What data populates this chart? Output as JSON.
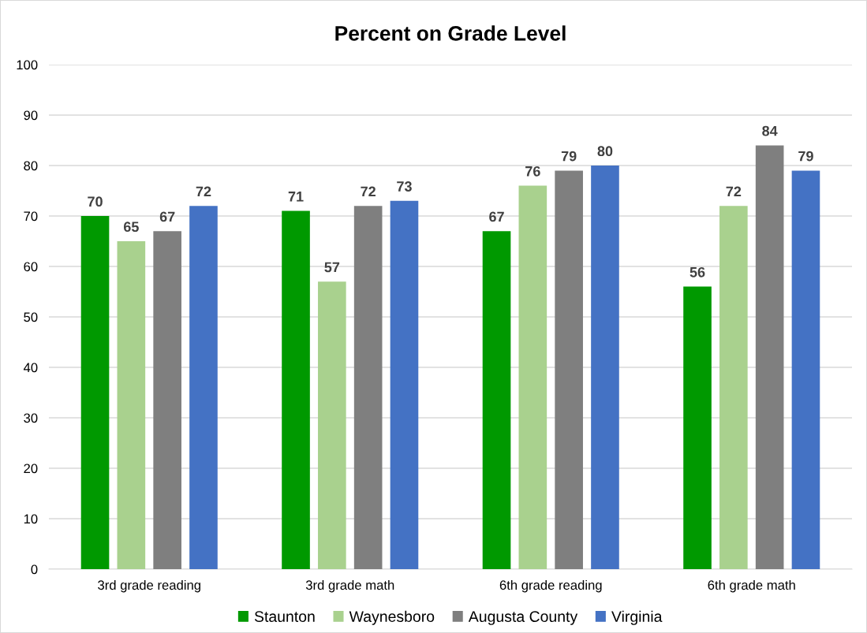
{
  "chart_data": {
    "type": "bar",
    "title": "Percent on Grade Level",
    "categories": [
      "3rd grade reading",
      "3rd grade math",
      "6th grade reading",
      "6th grade math"
    ],
    "series": [
      {
        "name": "Staunton",
        "color": "#009900",
        "values": [
          70,
          71,
          67,
          56
        ]
      },
      {
        "name": "Waynesboro",
        "color": "#a9d18e",
        "values": [
          65,
          57,
          76,
          72
        ]
      },
      {
        "name": "Augusta County",
        "color": "#7f7f7f",
        "values": [
          67,
          72,
          79,
          84
        ]
      },
      {
        "name": "Virginia",
        "color": "#4472c4",
        "values": [
          72,
          73,
          80,
          79
        ]
      }
    ],
    "ylim": [
      0,
      100
    ],
    "yticks": [
      0,
      10,
      20,
      30,
      40,
      50,
      60,
      70,
      80,
      90,
      100
    ],
    "grid": "y",
    "legend": "bottom",
    "data_labels": true
  }
}
